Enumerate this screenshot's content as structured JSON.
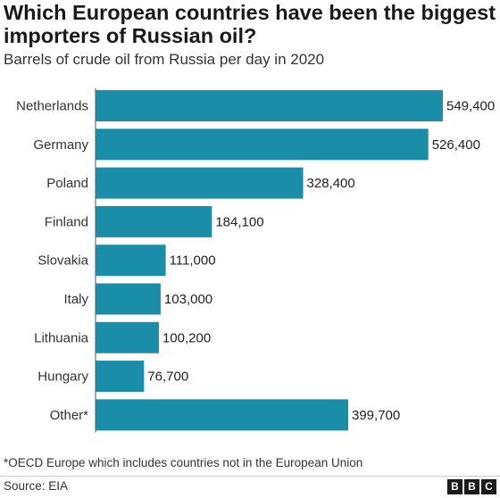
{
  "chart_data": {
    "type": "bar",
    "orientation": "horizontal",
    "title": "Which European countries have been the biggest importers of Russian oil?",
    "subtitle": "Barrels of crude oil from Russia per day in 2020",
    "categories": [
      "Netherlands",
      "Germany",
      "Poland",
      "Finland",
      "Slovakia",
      "Italy",
      "Lithuania",
      "Hungary",
      "Other*"
    ],
    "values": [
      549400,
      526400,
      328400,
      184100,
      111000,
      103000,
      100200,
      76700,
      399700
    ],
    "value_labels": [
      "549,400",
      "526,400",
      "328,400",
      "184,100",
      "111,000",
      "103,000",
      "100,200",
      "76,700",
      "399,700"
    ],
    "xlim": [
      0,
      549400
    ],
    "bar_color": "#1a8ea8",
    "grid": false,
    "legend": "none"
  },
  "footnote": "*OECD Europe which includes countries not in the European Union",
  "source": "Source: EIA",
  "logo": [
    "B",
    "B",
    "C"
  ]
}
